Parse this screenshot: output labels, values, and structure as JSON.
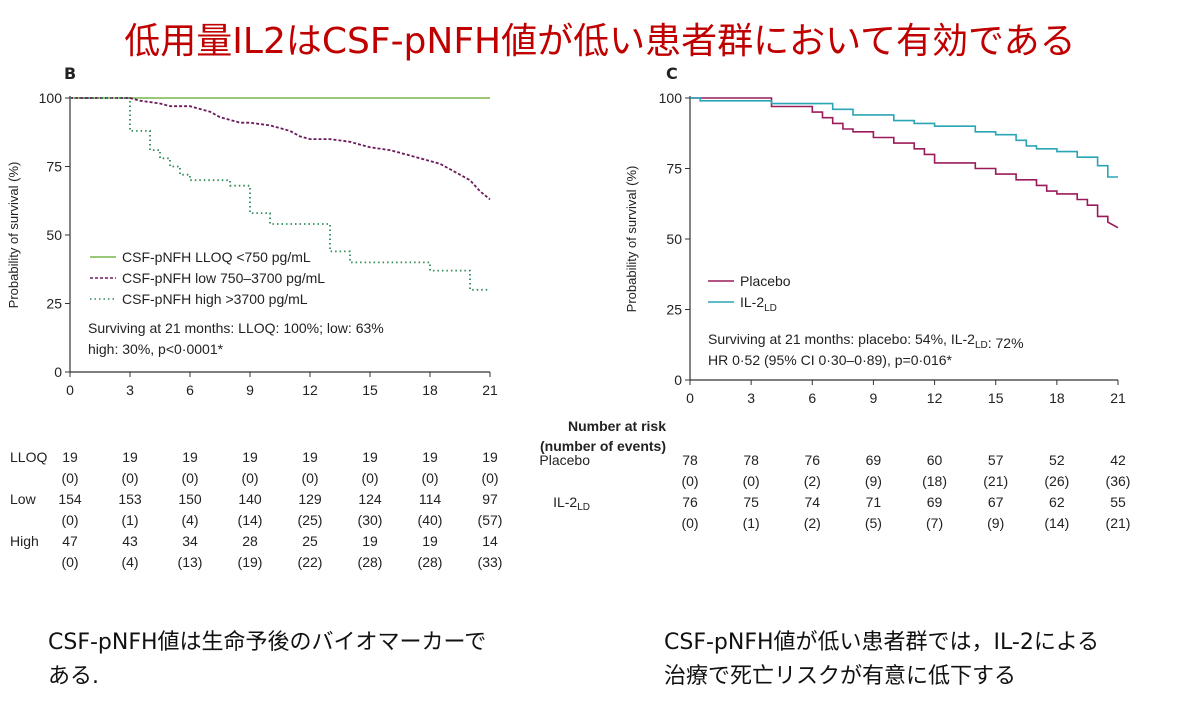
{
  "title": "低用量IL2はCSF-pNFH値が低い患者群において有効である",
  "captions": {
    "left": [
      "CSF-pNFH値は生命予後のバイオマーカーで",
      "ある."
    ],
    "right": [
      "CSF-pNFH値が低い患者群では，IL-2による",
      "治療で死亡リスクが有意に低下する"
    ]
  },
  "chart_data": [
    {
      "panel": "B",
      "type": "line",
      "ylabel": "Probability of survival (%)",
      "xticks": [
        0,
        3,
        6,
        9,
        12,
        15,
        18,
        21
      ],
      "yticks": [
        0,
        25,
        50,
        75,
        100
      ],
      "xlim": [
        0,
        21
      ],
      "ylim": [
        0,
        100
      ],
      "legend_position": "lower-left",
      "series": [
        {
          "name": "CSF-pNFH LLOQ <750 pg/mL",
          "color": "#7ab648",
          "style": "solid",
          "x": [
            0,
            21
          ],
          "y": [
            100,
            100
          ]
        },
        {
          "name": "CSF-pNFH low 750–3700 pg/mL",
          "color": "#6b1a5a",
          "style": "dash",
          "x": [
            0,
            3,
            3.5,
            4.5,
            5,
            6,
            6.5,
            7,
            7.5,
            8,
            8.5,
            9,
            10,
            10.5,
            11,
            11.5,
            12,
            13,
            14,
            14.5,
            15,
            16,
            16.5,
            17,
            17.5,
            18,
            18.5,
            19,
            19.5,
            20,
            20.5,
            21
          ],
          "y": [
            100,
            100,
            99,
            98,
            97,
            97,
            96,
            95,
            93,
            92,
            91,
            91,
            90,
            89,
            88,
            86,
            85,
            85,
            84,
            83,
            82,
            81,
            80,
            79,
            78,
            77,
            76,
            74,
            72,
            70,
            66,
            63
          ]
        },
        {
          "name": "CSF-pNFH high >3700 pg/mL",
          "color": "#2e8b57",
          "style": "dot",
          "x": [
            0,
            3,
            3,
            4,
            4,
            4.5,
            4.5,
            5,
            5,
            5.5,
            5.5,
            6,
            6,
            8,
            8,
            9,
            9,
            10,
            10,
            13,
            13,
            14,
            14,
            18,
            18,
            20,
            20,
            21
          ],
          "y": [
            100,
            100,
            88,
            88,
            81,
            81,
            78,
            78,
            75,
            75,
            72,
            72,
            70,
            70,
            68,
            68,
            58,
            58,
            54,
            54,
            44,
            44,
            40,
            40,
            37,
            37,
            30,
            30
          ]
        }
      ],
      "annotation": [
        "Surviving at 21 months: LLOQ: 100%; low: 63%",
        "high: 30%, p<0·0001*"
      ],
      "risk_table": {
        "rows": [
          {
            "label": "LLOQ",
            "n": [
              "19",
              "19",
              "19",
              "19",
              "19",
              "19",
              "19",
              "19"
            ],
            "events": [
              "(0)",
              "(0)",
              "(0)",
              "(0)",
              "(0)",
              "(0)",
              "(0)",
              "(0)"
            ]
          },
          {
            "label": "Low",
            "n": [
              "154",
              "153",
              "150",
              "140",
              "129",
              "124",
              "114",
              "97"
            ],
            "events": [
              "(0)",
              "(1)",
              "(4)",
              "(14)",
              "(25)",
              "(30)",
              "(40)",
              "(57)"
            ]
          },
          {
            "label": "High",
            "n": [
              "47",
              "43",
              "34",
              "28",
              "25",
              "19",
              "19",
              "14"
            ],
            "events": [
              "(0)",
              "(4)",
              "(13)",
              "(19)",
              "(22)",
              "(28)",
              "(28)",
              "(33)"
            ]
          }
        ]
      }
    },
    {
      "panel": "C",
      "type": "line",
      "ylabel": "Probability of survival (%)",
      "xticks": [
        0,
        3,
        6,
        9,
        12,
        15,
        18,
        21
      ],
      "yticks": [
        0,
        25,
        50,
        75,
        100
      ],
      "xlim": [
        0,
        21
      ],
      "ylim": [
        0,
        100
      ],
      "legend_position": "lower-left",
      "series": [
        {
          "name": "Placebo",
          "color": "#9b1b5a",
          "style": "solid",
          "x": [
            0,
            4,
            4,
            6,
            6,
            6.5,
            6.5,
            7,
            7,
            7.5,
            7.5,
            8,
            8,
            9,
            9,
            10,
            10,
            11,
            11,
            11.5,
            11.5,
            12,
            12,
            14,
            14,
            15,
            15,
            16,
            16,
            17,
            17,
            17.5,
            17.5,
            18,
            18,
            19,
            19,
            19.5,
            19.5,
            20,
            20,
            20.5,
            20.5,
            21
          ],
          "y": [
            100,
            100,
            97,
            97,
            95,
            95,
            93,
            93,
            91,
            91,
            89,
            89,
            88,
            88,
            86,
            86,
            84,
            84,
            82,
            82,
            80,
            80,
            77,
            77,
            75,
            75,
            73,
            73,
            71,
            71,
            69,
            69,
            67,
            67,
            66,
            66,
            64,
            64,
            62,
            62,
            58,
            58,
            56,
            54
          ]
        },
        {
          "name": "IL-2LD",
          "color": "#2aa5b5",
          "style": "solid",
          "x": [
            0,
            0.5,
            0.5,
            4,
            4,
            7,
            7,
            8,
            8,
            10,
            10,
            11,
            11,
            12,
            12,
            14,
            14,
            15,
            15,
            16,
            16,
            16.5,
            16.5,
            17,
            17,
            18,
            18,
            19,
            19,
            20,
            20,
            20.5,
            20.5,
            21
          ],
          "y": [
            100,
            100,
            99,
            99,
            98,
            98,
            96,
            96,
            94,
            94,
            92,
            92,
            91,
            91,
            90,
            90,
            88,
            88,
            87,
            87,
            85,
            85,
            83,
            83,
            82,
            82,
            81,
            81,
            79,
            79,
            76,
            76,
            72,
            72
          ]
        }
      ],
      "annotation": [
        "Surviving at 21 months: placebo: 54%, IL-2LD: 72%",
        "HR 0·52 (95% CI 0·30–0·89), p=0·016*"
      ],
      "risk_table": {
        "header": [
          "Number at risk",
          "(number of events)"
        ],
        "rows": [
          {
            "label": "Placebo",
            "n": [
              "78",
              "78",
              "76",
              "69",
              "60",
              "57",
              "52",
              "42"
            ],
            "events": [
              "(0)",
              "(0)",
              "(2)",
              "(9)",
              "(18)",
              "(21)",
              "(26)",
              "(36)"
            ]
          },
          {
            "label": "IL-2LD",
            "n": [
              "76",
              "75",
              "74",
              "71",
              "69",
              "67",
              "62",
              "55"
            ],
            "events": [
              "(0)",
              "(1)",
              "(2)",
              "(5)",
              "(7)",
              "(9)",
              "(14)",
              "(21)"
            ]
          }
        ]
      }
    }
  ]
}
